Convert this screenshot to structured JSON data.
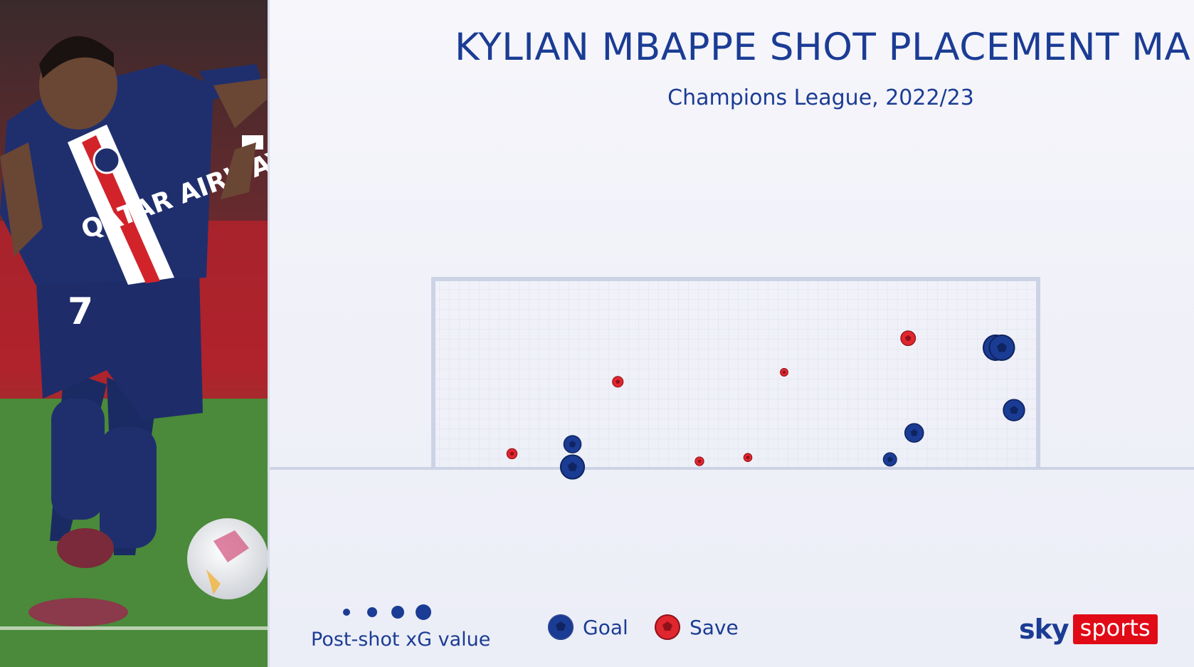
{
  "title": "KYLIAN MBAPPE SHOT PLACEMENT MAP",
  "subtitle": "Champions League, 2022/23",
  "colors": {
    "goal": "#1b3c94",
    "save": "#e0262f",
    "title": "#1b3c94",
    "frame": "#cdd3e6",
    "brand_red": "#e10a17"
  },
  "photo": {
    "description_icon": "player-photo",
    "shirt_sponsor": "QATAR AIRWAYS",
    "shirt_number": "7"
  },
  "legend": {
    "size_label": "Post-shot xG value",
    "goal_label": "Goal",
    "save_label": "Save",
    "size_steps": [
      0.1,
      0.3,
      0.5,
      0.7
    ]
  },
  "brand": {
    "sky": "sky",
    "sports": "sports"
  },
  "chart_data": {
    "type": "scatter",
    "title": "KYLIAN MBAPPE SHOT PLACEMENT MAP",
    "subtitle": "Champions League, 2022/23",
    "xlabel": "",
    "ylabel": "",
    "xlim": [
      0,
      1
    ],
    "ylim": [
      0,
      1
    ],
    "grid": true,
    "legend_placement": "bottom",
    "series": [
      {
        "name": "Goal",
        "points": [
          {
            "x": 0.23,
            "y": 0.0,
            "xg": 0.7
          },
          {
            "x": 0.23,
            "y": 0.12,
            "xg": 0.45
          },
          {
            "x": 0.755,
            "y": 0.04,
            "xg": 0.3
          },
          {
            "x": 0.795,
            "y": 0.18,
            "xg": 0.5
          },
          {
            "x": 0.93,
            "y": 0.63,
            "xg": 0.75
          },
          {
            "x": 0.94,
            "y": 0.63,
            "xg": 0.75
          },
          {
            "x": 0.96,
            "y": 0.3,
            "xg": 0.6
          }
        ]
      },
      {
        "name": "Save",
        "points": [
          {
            "x": 0.13,
            "y": 0.07,
            "xg": 0.18
          },
          {
            "x": 0.305,
            "y": 0.45,
            "xg": 0.2
          },
          {
            "x": 0.44,
            "y": 0.03,
            "xg": 0.12
          },
          {
            "x": 0.52,
            "y": 0.05,
            "xg": 0.1
          },
          {
            "x": 0.58,
            "y": 0.5,
            "xg": 0.08
          },
          {
            "x": 0.785,
            "y": 0.68,
            "xg": 0.35
          }
        ]
      }
    ]
  }
}
